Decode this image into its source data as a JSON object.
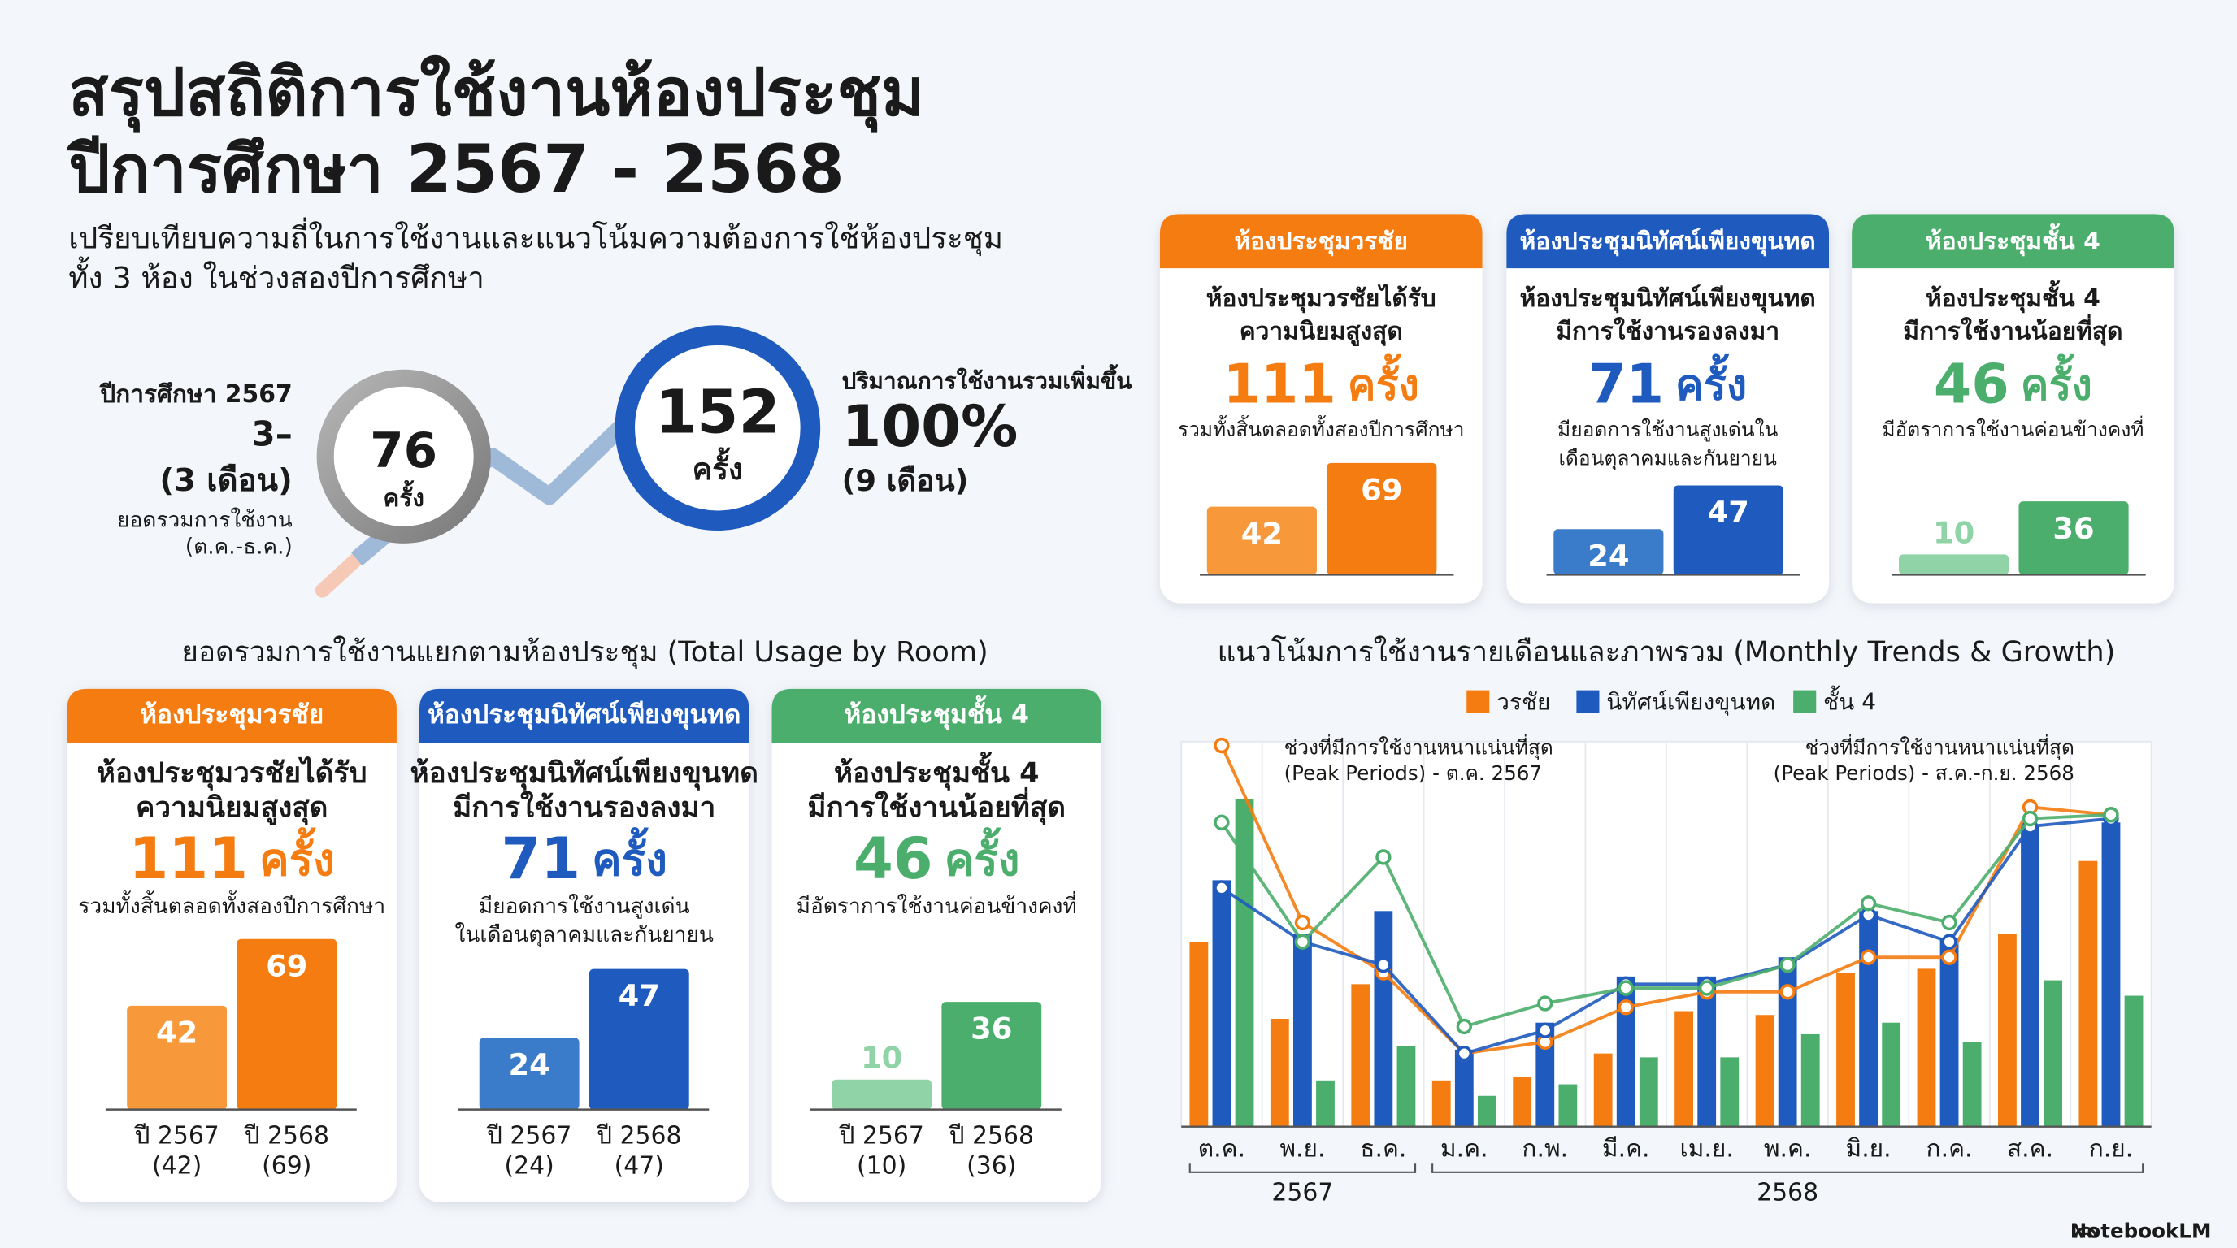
{
  "header": {
    "title": [
      "สรุปสถิติการใช้งานห้องประชุม",
      "ปีการศึกษา 2567 - 2568"
    ],
    "subtitle": [
      "เปรียบเทียบความถี่ในการใช้งานและแนวโน้มความต้องการใช้ห้องประชุม",
      "ทั้ง 3 ห้อง ในช่วงสองปีการศึกษา"
    ]
  },
  "summary": {
    "left": [
      "ปีการศึกษา 2567",
      "3–",
      "(3 เดือน)",
      "ยอดรวมการใช้งาน",
      "(ต.ค.-ธ.ค.)"
    ],
    "first_total": 76,
    "second_total": 152,
    "unit": "ครั้ง",
    "right": [
      "ปริมาณการใช้งานรวมเพิ่มขึ้น",
      "100%",
      "(9 เดือน)"
    ]
  },
  "usage_section_title": "ยอดรวมการใช้งานแยกตามห้องประชุม (Total Usage by Room)",
  "footer": "NotebookLM",
  "chart_data": [
    {
      "type": "bar",
      "header": "ห้องประชุมวรชัย",
      "title": [
        "ห้องประชุมวรชัยได้รับ",
        "ความนิยมสูงสุด"
      ],
      "total": 111,
      "unit": "ครั้ง",
      "note": [
        "รวมทั้งสิ้นตลอดทั้งสองปีการศึกษา"
      ],
      "color": "#f57c10",
      "colors": [
        "#f7983a",
        "#f57c10"
      ],
      "values": [
        42,
        69
      ],
      "ylim": [
        0,
        88
      ]
    },
    {
      "type": "bar",
      "header": "ห้องประชุมนิทัศน์เพียงขุนทด",
      "title": [
        "ห้องประชุมนิทัศน์เพียงขุนทด",
        "มีการใช้งานรองลงมา"
      ],
      "total": 71,
      "unit": "ครั้ง",
      "note": [
        "มียอดการใช้งานสูงเด่นใน",
        "เดือนตุลาคมและกันยายน"
      ],
      "color": "#1f5bbf",
      "colors": [
        "#3a7cc9",
        "#1f5bbf"
      ],
      "values": [
        24,
        47
      ],
      "ylim": [
        0,
        75
      ]
    },
    {
      "type": "bar",
      "header": "ห้องประชุมชั้น 4",
      "title": [
        "ห้องประชุมชั้น 4",
        "มีการใช้งานน้อยที่สุด"
      ],
      "total": 46,
      "unit": "ครั้ง",
      "note": [
        "มีอัตราการใช้งานค่อนข้างคงที่"
      ],
      "color": "#4cae6c",
      "colors": [
        "#8fd3a6",
        "#4cae6c"
      ],
      "values": [
        10,
        36
      ],
      "ylim": [
        0,
        70
      ]
    },
    {
      "type": "bar",
      "header": "ห้องประชุมวรชัย",
      "title": [
        "ห้องประชุมวรชัยได้รับ",
        "ความนิยมสูงสุด"
      ],
      "total": 111,
      "unit": "ครั้ง",
      "note": [
        "รวมทั้งสิ้นตลอดทั้งสองปีการศึกษา"
      ],
      "color": "#f57c10",
      "colors": [
        "#f7983a",
        "#f57c10"
      ],
      "categories": [
        "ปี 2567",
        "ปี 2568"
      ],
      "values": [
        42,
        69
      ],
      "value_labels": [
        "(42)",
        "(69)"
      ],
      "ylim": [
        0,
        75
      ]
    },
    {
      "type": "bar",
      "header": "ห้องประชุมนิทัศน์เพียงขุนทด",
      "title": [
        "ห้องประชุมนิทัศน์เพียงขุนทด",
        "มีการใช้งานรองลงมา"
      ],
      "total": 71,
      "unit": "ครั้ง",
      "note": [
        "มียอดการใช้งานสูงเด่น",
        "ในเดือนตุลาคมและกันยายน"
      ],
      "color": "#1f5bbf",
      "colors": [
        "#3a7cc9",
        "#1f5bbf"
      ],
      "categories": [
        "ปี 2567",
        "ปี 2568"
      ],
      "values": [
        24,
        47
      ],
      "value_labels": [
        "(24)",
        "(47)"
      ],
      "ylim": [
        0,
        62
      ]
    },
    {
      "type": "bar",
      "header": "ห้องประชุมชั้น 4",
      "title": [
        "ห้องประชุมชั้น 4",
        "มีการใช้งานน้อยที่สุด"
      ],
      "total": 46,
      "unit": "ครั้ง",
      "note": [
        "มีอัตราการใช้งานค่อนข้างคงที่"
      ],
      "color": "#4cae6c",
      "colors": [
        "#8fd3a6",
        "#4cae6c"
      ],
      "categories": [
        "ปี 2567",
        "ปี 2568"
      ],
      "values": [
        10,
        36
      ],
      "value_labels": [
        "(10)",
        "(36)"
      ],
      "ylim": [
        0,
        62
      ]
    },
    {
      "type": "bar_line",
      "title": "แนวโน้มการใช้งานรายเดือนและภาพรวม (Monthly Trends & Growth)",
      "categories": [
        "ต.ค.",
        "พ.ย.",
        "ธ.ค.",
        "ม.ค.",
        "ก.พ.",
        "มี.ค.",
        "เม.ย.",
        "พ.ค.",
        "มิ.ย.",
        "ก.ค.",
        "ส.ค.",
        "ก.ย."
      ],
      "series": [
        {
          "name": "วรชัย",
          "color": "#f57c10",
          "values": [
            48,
            28,
            37,
            12,
            13,
            19,
            30,
            29,
            40,
            41,
            50,
            69
          ]
        },
        {
          "name": "นิทัศน์เพียงขุนทด",
          "color": "#1f5bbf",
          "values": [
            64,
            50,
            56,
            20,
            27,
            39,
            39,
            44,
            56,
            49,
            78,
            79
          ]
        },
        {
          "name": "ชั้น 4",
          "color": "#4cae6c",
          "values": [
            85,
            12,
            21,
            8,
            11,
            18,
            18,
            24,
            27,
            22,
            38,
            34
          ]
        }
      ],
      "lines": [
        {
          "color": "#f57c10",
          "values": [
            99,
            53,
            40,
            19,
            22,
            31,
            35,
            35,
            44,
            44,
            83,
            81
          ]
        },
        {
          "color": "#1f5bbf",
          "values": [
            62,
            48,
            42,
            19,
            25,
            37,
            37,
            42,
            55,
            48,
            78,
            80
          ]
        },
        {
          "color": "#4cae6c",
          "values": [
            79,
            48,
            70,
            26,
            32,
            36,
            36,
            42,
            58,
            53,
            80,
            81
          ]
        }
      ],
      "ylim": [
        0,
        100
      ],
      "annotations": [
        [
          "ช่วงที่มีการใช้งานหนาแน่นที่สุด",
          "(Peak Periods) - ต.ค. 2567"
        ],
        [
          "ช่วงที่มีการใช้งานหนาแน่นที่สุด",
          "(Peak Periods) - ส.ค.-ก.ย. 2568"
        ]
      ],
      "year_groups": [
        {
          "label": "2567",
          "count": 3
        },
        {
          "label": "2568",
          "count": 9
        }
      ]
    }
  ]
}
